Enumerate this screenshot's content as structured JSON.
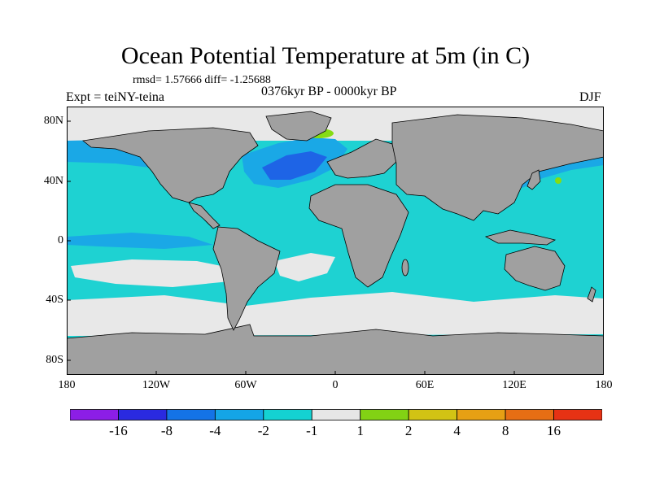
{
  "title": "Ocean Potential Temperature at 5m (in C)",
  "stats": "rmsd= 1.57666 diff= -1.25688",
  "left_label": "Expt = teiNY-teina",
  "period": "0376kyr BP - 0000kyr BP",
  "season": "DJF",
  "y_ticks": [
    "80N",
    "40N",
    "0",
    "40S",
    "80S"
  ],
  "x_ticks": [
    "180",
    "120W",
    "60W",
    "0",
    "60E",
    "120E",
    "180"
  ],
  "colorbar": {
    "colors": [
      "#8c1ee6",
      "#2a2ae0",
      "#1473e6",
      "#14a5e6",
      "#14d2d2",
      "#e6e6e6",
      "#82d214",
      "#d2c314",
      "#e6a014",
      "#e66e14",
      "#e63214"
    ],
    "labels": [
      "-16",
      "-8",
      "-4",
      "-2",
      "-1",
      "1",
      "2",
      "4",
      "8",
      "16"
    ]
  },
  "palette": {
    "land": "#a0a0a0",
    "ocean": "#1ed2d2",
    "light": "#e8e8e8",
    "blue": "#1aa8e6",
    "deep": "#1e64e6",
    "green": "#86dc14"
  }
}
